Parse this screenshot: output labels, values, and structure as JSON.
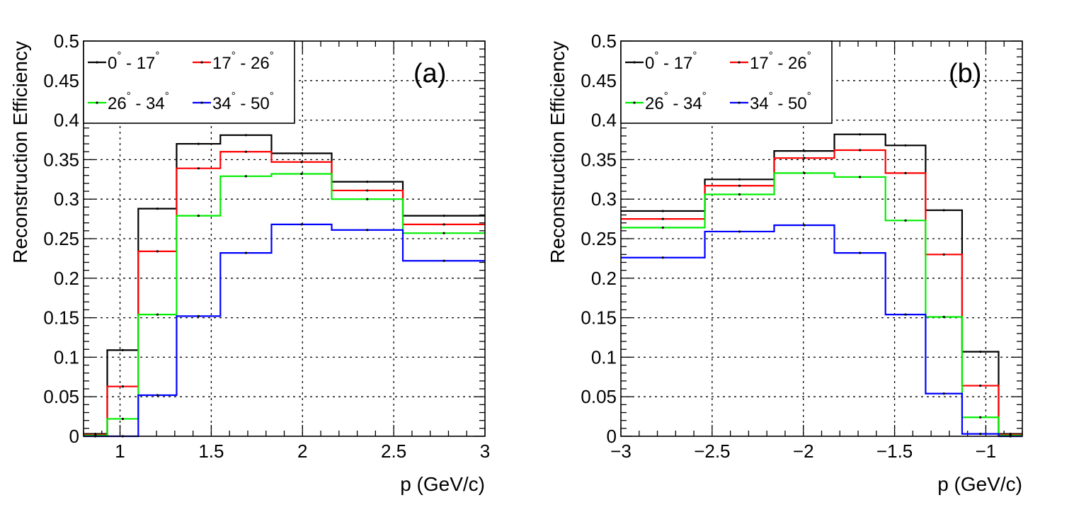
{
  "chart_data": [
    {
      "id": "a",
      "type": "step",
      "panel_label": "(a)",
      "xlabel": "p (GeV/c)",
      "ylabel": "Reconstruction Efficiency",
      "xlim": [
        0.8,
        3.0
      ],
      "ylim": [
        0,
        0.5
      ],
      "xticks": [
        1,
        1.5,
        2,
        2.5,
        3
      ],
      "xtick_labels": [
        "1",
        "1.5",
        "2",
        "2.5",
        "3"
      ],
      "yticks": [
        0,
        0.05,
        0.1,
        0.15,
        0.2,
        0.25,
        0.3,
        0.35,
        0.4,
        0.45,
        0.5
      ],
      "ytick_labels": [
        "0",
        "0.05",
        "0.1",
        "0.15",
        "0.2",
        "0.25",
        "0.3",
        "0.35",
        "0.4",
        "0.45",
        "0.5"
      ],
      "grid": true,
      "bin_edges": [
        0.8,
        0.93,
        1.1,
        1.31,
        1.55,
        1.83,
        2.16,
        2.55,
        3.0
      ],
      "series": [
        {
          "name": "0° - 17°",
          "range_lo": "0",
          "range_hi": "17",
          "color": "#000000",
          "values": [
            0.003,
            0.109,
            0.288,
            0.37,
            0.381,
            0.358,
            0.322,
            0.279
          ]
        },
        {
          "name": "17° - 26°",
          "range_lo": "17",
          "range_hi": "26",
          "color": "#ff0000",
          "values": [
            0.002,
            0.063,
            0.234,
            0.339,
            0.36,
            0.347,
            0.311,
            0.268
          ]
        },
        {
          "name": "26° - 34°",
          "range_lo": "26",
          "range_hi": "34",
          "color": "#00ee00",
          "values": [
            0.001,
            0.022,
            0.154,
            0.279,
            0.329,
            0.332,
            0.3,
            0.257
          ]
        },
        {
          "name": "34° - 50°",
          "range_lo": "34",
          "range_hi": "50",
          "color": "#0000ff",
          "values": [
            0.0,
            0.0,
            0.052,
            0.152,
            0.232,
            0.268,
            0.261,
            0.222
          ]
        }
      ]
    },
    {
      "id": "b",
      "type": "step",
      "panel_label": "(b)",
      "xlabel": "p (GeV/c)",
      "ylabel": "Reconstruction Efficiency",
      "xlim": [
        -3.0,
        -0.8
      ],
      "ylim": [
        0,
        0.5
      ],
      "xticks": [
        -3,
        -2.5,
        -2,
        -1.5,
        -1
      ],
      "xtick_labels": [
        "−3",
        "−2.5",
        "−2",
        "−1.5",
        "−1"
      ],
      "yticks": [
        0,
        0.05,
        0.1,
        0.15,
        0.2,
        0.25,
        0.3,
        0.35,
        0.4,
        0.45,
        0.5
      ],
      "ytick_labels": [
        "0",
        "0.05",
        "0.1",
        "0.15",
        "0.2",
        "0.25",
        "0.3",
        "0.35",
        "0.4",
        "0.45",
        "0.5"
      ],
      "grid": true,
      "bin_edges": [
        -3.0,
        -2.54,
        -2.16,
        -1.83,
        -1.55,
        -1.33,
        -1.13,
        -0.93,
        -0.8
      ],
      "series": [
        {
          "name": "0° - 17°",
          "range_lo": "0",
          "range_hi": "17",
          "color": "#000000",
          "values": [
            0.285,
            0.325,
            0.361,
            0.382,
            0.368,
            0.286,
            0.107,
            0.003
          ]
        },
        {
          "name": "17° - 26°",
          "range_lo": "17",
          "range_hi": "26",
          "color": "#ff0000",
          "values": [
            0.275,
            0.317,
            0.352,
            0.362,
            0.333,
            0.23,
            0.064,
            0.002
          ]
        },
        {
          "name": "26° - 34°",
          "range_lo": "26",
          "range_hi": "34",
          "color": "#00ee00",
          "values": [
            0.264,
            0.306,
            0.333,
            0.328,
            0.273,
            0.151,
            0.024,
            0.001
          ]
        },
        {
          "name": "34° - 50°",
          "range_lo": "34",
          "range_hi": "50",
          "color": "#0000ff",
          "values": [
            0.226,
            0.259,
            0.267,
            0.232,
            0.154,
            0.054,
            0.003,
            0.0
          ]
        }
      ]
    }
  ]
}
